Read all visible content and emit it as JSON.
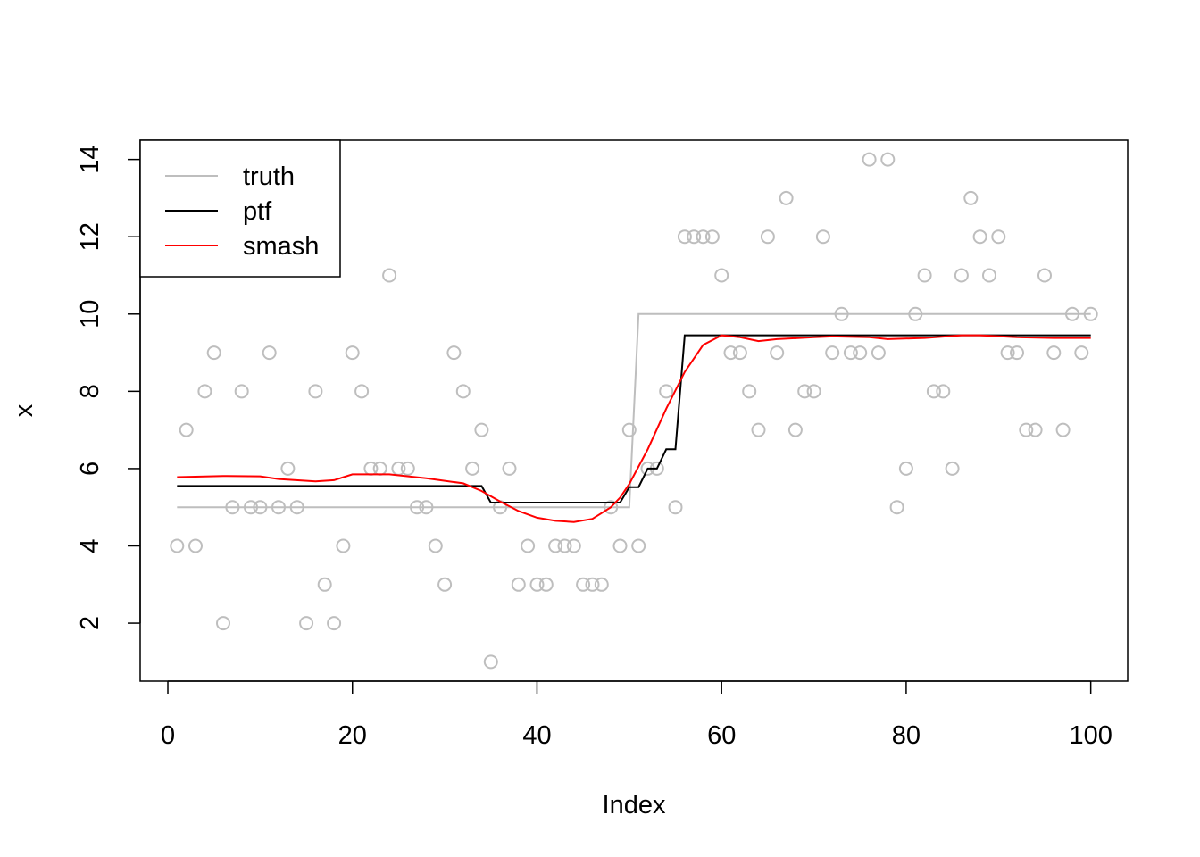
{
  "chart_data": {
    "type": "scatter",
    "title": "",
    "xlabel": "Index",
    "ylabel": "x",
    "xlim": [
      -3,
      104
    ],
    "ylim": [
      0.5,
      14.5
    ],
    "x_ticks": [
      0,
      20,
      40,
      60,
      80,
      100
    ],
    "y_ticks": [
      2,
      4,
      6,
      8,
      10,
      12,
      14
    ],
    "grid": false,
    "legend": {
      "position": "top-left",
      "entries": [
        {
          "label": "truth",
          "color": "#bebebe"
        },
        {
          "label": "ptf",
          "color": "#000000"
        },
        {
          "label": "smash",
          "color": "#ff0000"
        }
      ]
    },
    "points": {
      "color": "#bebebe",
      "x": [
        1,
        2,
        3,
        4,
        5,
        6,
        7,
        8,
        9,
        10,
        11,
        12,
        13,
        14,
        15,
        16,
        17,
        18,
        19,
        20,
        21,
        22,
        23,
        24,
        25,
        26,
        27,
        28,
        29,
        30,
        31,
        32,
        33,
        34,
        35,
        36,
        37,
        38,
        39,
        40,
        41,
        42,
        43,
        44,
        45,
        46,
        47,
        48,
        49,
        50,
        51,
        52,
        53,
        54,
        55,
        56,
        57,
        58,
        59,
        60,
        61,
        62,
        63,
        64,
        65,
        66,
        67,
        68,
        69,
        70,
        71,
        72,
        73,
        74,
        75,
        76,
        77,
        78,
        79,
        80,
        81,
        82,
        83,
        84,
        85,
        86,
        87,
        88,
        89,
        90,
        91,
        92,
        93,
        94,
        95,
        96,
        97,
        98,
        99,
        100
      ],
      "y": [
        4,
        7,
        4,
        8,
        9,
        2,
        5,
        8,
        5,
        5,
        9,
        5,
        6,
        5,
        2,
        8,
        3,
        2,
        4,
        9,
        8,
        6,
        6,
        11,
        6,
        6,
        5,
        5,
        4,
        3,
        9,
        8,
        6,
        7,
        1,
        5,
        6,
        3,
        4,
        3,
        3,
        4,
        4,
        4,
        3,
        3,
        3,
        5,
        4,
        7,
        4,
        6,
        6,
        8,
        5,
        12,
        12,
        12,
        12,
        11,
        9,
        9,
        8,
        7,
        12,
        9,
        13,
        7,
        8,
        8,
        12,
        9,
        10,
        9,
        9,
        14,
        9,
        14,
        5,
        6,
        10,
        11,
        8,
        8,
        6,
        11,
        13,
        12,
        11,
        12,
        9,
        9,
        7,
        7,
        11,
        9,
        7,
        10,
        9,
        10
      ]
    },
    "series": [
      {
        "name": "truth",
        "color": "#bebebe",
        "x": [
          1,
          50,
          51,
          100
        ],
        "y": [
          5,
          5,
          10,
          10
        ]
      },
      {
        "name": "ptf",
        "color": "#000000",
        "x": [
          1,
          34,
          35,
          49,
          50,
          51,
          52,
          53,
          54,
          55,
          56,
          100
        ],
        "y": [
          5.55,
          5.55,
          5.12,
          5.12,
          5.52,
          5.52,
          6.0,
          6.0,
          6.5,
          6.5,
          9.45,
          9.45
        ]
      },
      {
        "name": "smash",
        "color": "#ff0000",
        "x": [
          1,
          3,
          6,
          10,
          12,
          16,
          18,
          20,
          24,
          28,
          32,
          34,
          36,
          38,
          40,
          42,
          44,
          46,
          48,
          49,
          50,
          52,
          54,
          56,
          58,
          60,
          62,
          64,
          66,
          70,
          72,
          76,
          78,
          82,
          86,
          88,
          92,
          96,
          100
        ],
        "y": [
          5.78,
          5.79,
          5.81,
          5.8,
          5.73,
          5.67,
          5.7,
          5.85,
          5.85,
          5.75,
          5.62,
          5.42,
          5.15,
          4.9,
          4.73,
          4.65,
          4.62,
          4.7,
          5.0,
          5.25,
          5.6,
          6.5,
          7.55,
          8.5,
          9.2,
          9.45,
          9.4,
          9.3,
          9.35,
          9.4,
          9.42,
          9.4,
          9.35,
          9.38,
          9.45,
          9.45,
          9.4,
          9.38,
          9.38
        ]
      }
    ]
  }
}
